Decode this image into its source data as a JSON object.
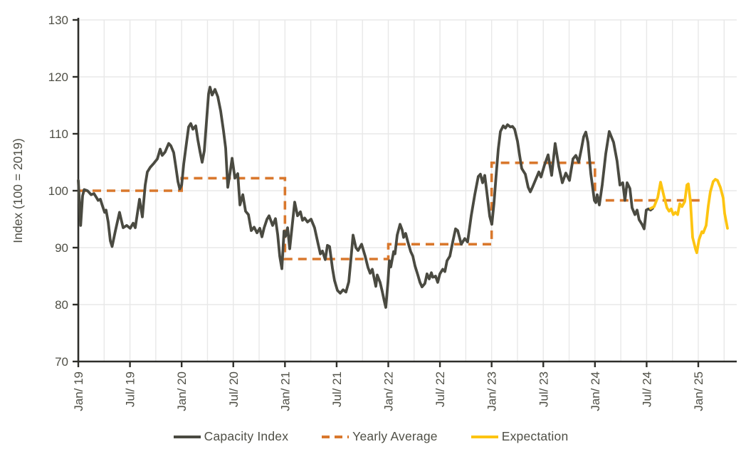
{
  "chart_data": {
    "type": "line",
    "title": "",
    "xlabel": "",
    "ylabel": "Index (100 = 2019)",
    "ylim": [
      70,
      130
    ],
    "y_ticks": [
      70,
      80,
      90,
      100,
      110,
      120,
      130
    ],
    "x_unit": "months since Jan 2019",
    "x_ticks": [
      {
        "t": 0,
        "label": "Jan/ 19"
      },
      {
        "t": 6,
        "label": "Jul/ 19"
      },
      {
        "t": 12,
        "label": "Jan/ 20"
      },
      {
        "t": 18,
        "label": "Jul/ 20"
      },
      {
        "t": 24,
        "label": "Jan/ 21"
      },
      {
        "t": 30,
        "label": "Jul/ 21"
      },
      {
        "t": 36,
        "label": "Jan/ 22"
      },
      {
        "t": 42,
        "label": "Jul/ 22"
      },
      {
        "t": 48,
        "label": "Jan/ 23"
      },
      {
        "t": 54,
        "label": "Jul/ 23"
      },
      {
        "t": 60,
        "label": "Jan/ 24"
      },
      {
        "t": 66,
        "label": "Jul/ 24"
      },
      {
        "t": 72,
        "label": "Jan/ 25"
      }
    ],
    "grid": {
      "horizontal_every": 10,
      "vertical_every_months": 3
    },
    "legend_position": "bottom",
    "series": [
      {
        "name": "Capacity Index",
        "type": "line",
        "style": "solid",
        "color": "#4a4a41",
        "points": [
          [
            0,
            101.8
          ],
          [
            0.27,
            93.9
          ],
          [
            0.5,
            99.1
          ],
          [
            0.69,
            100.2
          ],
          [
            1.07,
            100
          ],
          [
            1.49,
            99.3
          ],
          [
            1.82,
            99.5
          ],
          [
            2.07,
            98.9
          ],
          [
            2.31,
            98.3
          ],
          [
            2.56,
            98.5
          ],
          [
            2.77,
            97.5
          ],
          [
            3.06,
            96.2
          ],
          [
            3.22,
            96.6
          ],
          [
            3.47,
            94.5
          ],
          [
            3.72,
            91.2
          ],
          [
            3.93,
            90.2
          ],
          [
            4.3,
            92.9
          ],
          [
            4.79,
            96.2
          ],
          [
            5.21,
            93.5
          ],
          [
            5.62,
            93.9
          ],
          [
            6.03,
            93.4
          ],
          [
            6.37,
            94.3
          ],
          [
            6.61,
            93.5
          ],
          [
            7.11,
            98.5
          ],
          [
            7.44,
            95.4
          ],
          [
            7.77,
            101
          ],
          [
            8.02,
            103.3
          ],
          [
            8.35,
            104.1
          ],
          [
            8.76,
            104.8
          ],
          [
            9.18,
            105.6
          ],
          [
            9.51,
            107.3
          ],
          [
            9.75,
            106.2
          ],
          [
            10.08,
            106.8
          ],
          [
            10.5,
            108.3
          ],
          [
            10.75,
            107.9
          ],
          [
            11.08,
            106.7
          ],
          [
            11.32,
            104.3
          ],
          [
            11.57,
            101.6
          ],
          [
            11.78,
            100.3
          ],
          [
            12,
            101
          ],
          [
            12.24,
            104.7
          ],
          [
            12.57,
            108.5
          ],
          [
            12.81,
            111.2
          ],
          [
            13.06,
            111.8
          ],
          [
            13.31,
            110.8
          ],
          [
            13.64,
            111.4
          ],
          [
            13.89,
            108.9
          ],
          [
            14.14,
            106.8
          ],
          [
            14.38,
            105
          ],
          [
            14.63,
            107
          ],
          [
            14.88,
            112
          ],
          [
            15.13,
            117
          ],
          [
            15.29,
            118.2
          ],
          [
            15.54,
            116.8
          ],
          [
            15.87,
            117.8
          ],
          [
            16.2,
            116.5
          ],
          [
            16.53,
            114
          ],
          [
            16.86,
            110.5
          ],
          [
            17.11,
            107.5
          ],
          [
            17.36,
            100.6
          ],
          [
            17.61,
            103
          ],
          [
            17.86,
            105.7
          ],
          [
            18.19,
            102.2
          ],
          [
            18.52,
            103
          ],
          [
            18.77,
            97.5
          ],
          [
            19.1,
            99.3
          ],
          [
            19.43,
            96.4
          ],
          [
            19.76,
            95.8
          ],
          [
            20.09,
            93
          ],
          [
            20.42,
            93.6
          ],
          [
            20.75,
            92.6
          ],
          [
            21.08,
            93.4
          ],
          [
            21.33,
            91.9
          ],
          [
            21.58,
            93.5
          ],
          [
            21.91,
            95
          ],
          [
            22.15,
            95.6
          ],
          [
            22.57,
            93.9
          ],
          [
            22.9,
            95.1
          ],
          [
            23.15,
            92.3
          ],
          [
            23.39,
            88.5
          ],
          [
            23.64,
            86.3
          ],
          [
            23.89,
            92.9
          ],
          [
            24.06,
            92
          ],
          [
            24.3,
            93.5
          ],
          [
            24.55,
            89.8
          ],
          [
            24.8,
            93.3
          ],
          [
            25.13,
            98
          ],
          [
            25.46,
            95.6
          ],
          [
            25.79,
            96.3
          ],
          [
            26.04,
            94.8
          ],
          [
            26.29,
            95.2
          ],
          [
            26.62,
            94.5
          ],
          [
            27.03,
            95
          ],
          [
            27.44,
            93.5
          ],
          [
            27.86,
            90.6
          ],
          [
            28.11,
            88.9
          ],
          [
            28.35,
            89.4
          ],
          [
            28.68,
            87.9
          ],
          [
            28.93,
            90.4
          ],
          [
            29.18,
            90.2
          ],
          [
            29.51,
            86.4
          ],
          [
            29.76,
            84.2
          ],
          [
            30.09,
            82.5
          ],
          [
            30.42,
            82
          ],
          [
            30.75,
            82.6
          ],
          [
            31.08,
            82.2
          ],
          [
            31.41,
            84
          ],
          [
            31.66,
            88
          ],
          [
            31.91,
            92.2
          ],
          [
            32.24,
            90
          ],
          [
            32.49,
            89.5
          ],
          [
            32.9,
            90.6
          ],
          [
            33.31,
            88.5
          ],
          [
            33.64,
            86.5
          ],
          [
            33.89,
            85.5
          ],
          [
            34.14,
            86.2
          ],
          [
            34.55,
            83.2
          ],
          [
            34.72,
            85.2
          ],
          [
            35.05,
            83.9
          ],
          [
            35.3,
            82.3
          ],
          [
            35.54,
            80.6
          ],
          [
            35.71,
            79.5
          ],
          [
            35.96,
            83.9
          ],
          [
            36.12,
            87.7
          ],
          [
            36.29,
            86.6
          ],
          [
            36.62,
            89.3
          ],
          [
            36.78,
            88.9
          ],
          [
            37.03,
            92.2
          ],
          [
            37.36,
            94.1
          ],
          [
            37.61,
            93.1
          ],
          [
            37.78,
            91.8
          ],
          [
            38.02,
            92.5
          ],
          [
            38.27,
            91
          ],
          [
            38.6,
            89.3
          ],
          [
            38.85,
            88.5
          ],
          [
            39.1,
            86.8
          ],
          [
            39.43,
            85.2
          ],
          [
            39.68,
            83.9
          ],
          [
            39.92,
            83.1
          ],
          [
            40.25,
            83.7
          ],
          [
            40.5,
            85.4
          ],
          [
            40.75,
            84.5
          ],
          [
            41,
            85.6
          ],
          [
            41.16,
            84.8
          ],
          [
            41.49,
            85
          ],
          [
            41.74,
            83.9
          ],
          [
            41.99,
            85.4
          ],
          [
            42.32,
            86.2
          ],
          [
            42.57,
            85.8
          ],
          [
            42.82,
            87.7
          ],
          [
            43.15,
            88.5
          ],
          [
            43.48,
            91
          ],
          [
            43.81,
            93.3
          ],
          [
            44.06,
            93
          ],
          [
            44.47,
            90.6
          ],
          [
            44.88,
            91.6
          ],
          [
            45.21,
            91
          ],
          [
            45.63,
            95.6
          ],
          [
            46.04,
            99.3
          ],
          [
            46.45,
            102.5
          ],
          [
            46.7,
            102.9
          ],
          [
            46.95,
            101.4
          ],
          [
            47.2,
            102.7
          ],
          [
            47.45,
            99.7
          ],
          [
            47.78,
            95.5
          ],
          [
            48.03,
            94.1
          ],
          [
            48.27,
            97.7
          ],
          [
            48.52,
            102.7
          ],
          [
            48.77,
            107.3
          ],
          [
            49.02,
            110.4
          ],
          [
            49.35,
            111.4
          ],
          [
            49.6,
            111
          ],
          [
            49.85,
            111.6
          ],
          [
            50.18,
            111.2
          ],
          [
            50.42,
            111.3
          ],
          [
            50.67,
            110.8
          ],
          [
            51,
            108.7
          ],
          [
            51.25,
            106.2
          ],
          [
            51.5,
            103.9
          ],
          [
            51.75,
            103.3
          ],
          [
            51.91,
            102.9
          ],
          [
            52.24,
            100.6
          ],
          [
            52.49,
            99.8
          ],
          [
            52.74,
            100.6
          ],
          [
            53.07,
            101.8
          ],
          [
            53.48,
            103.3
          ],
          [
            53.73,
            102.4
          ],
          [
            54.14,
            104.5
          ],
          [
            54.56,
            106.3
          ],
          [
            54.97,
            102.7
          ],
          [
            55.38,
            108.3
          ],
          [
            55.8,
            104.3
          ],
          [
            56.21,
            101.4
          ],
          [
            56.62,
            103.1
          ],
          [
            57.04,
            101.8
          ],
          [
            57.45,
            105.6
          ],
          [
            57.78,
            106.2
          ],
          [
            58.11,
            105
          ],
          [
            58.44,
            107.5
          ],
          [
            58.69,
            109.5
          ],
          [
            58.94,
            110.3
          ],
          [
            59.19,
            108.5
          ],
          [
            59.52,
            103
          ],
          [
            59.93,
            98.3
          ],
          [
            60.1,
            97.9
          ],
          [
            60.26,
            99.3
          ],
          [
            60.51,
            97.5
          ],
          [
            60.84,
            101
          ],
          [
            61.25,
            106.5
          ],
          [
            61.66,
            110.4
          ],
          [
            62.16,
            108.5
          ],
          [
            62.57,
            105.2
          ],
          [
            62.9,
            101
          ],
          [
            63.23,
            101.4
          ],
          [
            63.48,
            98.3
          ],
          [
            63.73,
            101.4
          ],
          [
            64.06,
            100.4
          ],
          [
            64.31,
            97
          ],
          [
            64.64,
            95.8
          ],
          [
            64.89,
            96.6
          ],
          [
            65.13,
            94.9
          ],
          [
            65.46,
            94.1
          ],
          [
            65.71,
            93.3
          ],
          [
            65.96,
            96.6
          ],
          [
            66.21,
            96.8
          ],
          [
            66.46,
            96.6
          ],
          [
            66.7,
            96.9
          ]
        ]
      },
      {
        "name": "Yearly Average",
        "type": "step",
        "style": "dashed",
        "color": "#d9782d",
        "segments": [
          {
            "from": 0,
            "to": 12,
            "value": 100
          },
          {
            "from": 12,
            "to": 24,
            "value": 102.2
          },
          {
            "from": 24,
            "to": 36,
            "value": 88
          },
          {
            "from": 36,
            "to": 48,
            "value": 90.6
          },
          {
            "from": 48,
            "to": 60,
            "value": 104.9
          },
          {
            "from": 60,
            "to": 72.6,
            "value": 98.3
          }
        ]
      },
      {
        "name": "Expectation",
        "type": "line",
        "style": "solid",
        "color": "#fdc411",
        "points": [
          [
            66.46,
            96.9
          ],
          [
            66.87,
            97.2
          ],
          [
            67.29,
            98.8
          ],
          [
            67.62,
            101.5
          ],
          [
            68.03,
            98.9
          ],
          [
            68.36,
            97
          ],
          [
            68.61,
            96.4
          ],
          [
            68.86,
            96.8
          ],
          [
            69.1,
            95.8
          ],
          [
            69.35,
            96.2
          ],
          [
            69.6,
            95.8
          ],
          [
            69.85,
            97.7
          ],
          [
            70.1,
            97.2
          ],
          [
            70.43,
            98.1
          ],
          [
            70.68,
            101
          ],
          [
            70.84,
            101.2
          ],
          [
            71.09,
            98.1
          ],
          [
            71.34,
            91.8
          ],
          [
            71.67,
            89.8
          ],
          [
            71.83,
            89.1
          ],
          [
            72.08,
            91.4
          ],
          [
            72.41,
            92.8
          ],
          [
            72.58,
            92.6
          ],
          [
            72.91,
            93.9
          ],
          [
            73.16,
            97.3
          ],
          [
            73.4,
            99.8
          ],
          [
            73.73,
            101.6
          ],
          [
            73.98,
            102
          ],
          [
            74.23,
            101.8
          ],
          [
            74.56,
            100.6
          ],
          [
            74.89,
            98.7
          ],
          [
            75.06,
            96
          ],
          [
            75.39,
            93.4
          ]
        ]
      }
    ],
    "colors": {
      "grid": "#e8e8e8",
      "axis": "#2e2e2a",
      "text": "#4f4f46"
    }
  },
  "legend": {
    "items": [
      {
        "label": "Capacity Index"
      },
      {
        "label": "Yearly Average"
      },
      {
        "label": "Expectation"
      }
    ]
  }
}
